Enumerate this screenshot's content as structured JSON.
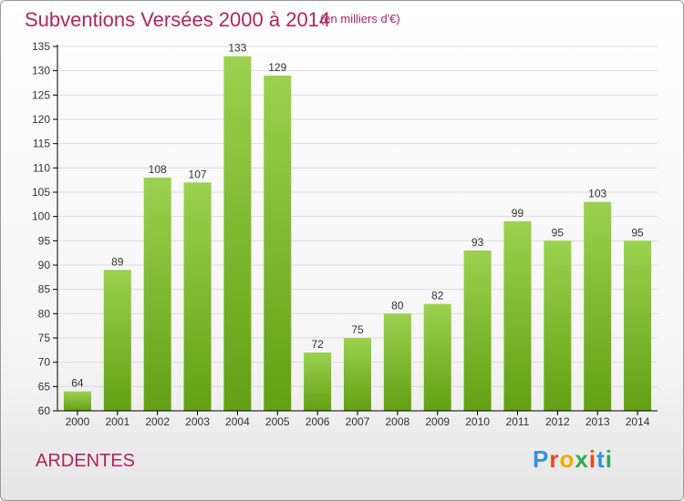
{
  "header": {
    "title": "Subventions Versées 2000 à 2014",
    "subtitle": "(en milliers d'€)"
  },
  "footer": {
    "location": "ARDENTES",
    "logo_text": "Proxiti"
  },
  "colors": {
    "title": "#b0245e",
    "bar_top": "#9bd14f",
    "bar_bottom": "#63a014",
    "axis": "#000000",
    "grid": "#dcdcdc"
  },
  "chart_data": {
    "type": "bar",
    "title": "Subventions Versées 2000 à 2014",
    "subtitle": "(en milliers d'€)",
    "xlabel": "",
    "ylabel": "",
    "categories": [
      "2000",
      "2001",
      "2002",
      "2003",
      "2004",
      "2005",
      "2006",
      "2007",
      "2008",
      "2009",
      "2010",
      "2011",
      "2012",
      "2013",
      "2014"
    ],
    "values": [
      64,
      89,
      108,
      107,
      133,
      129,
      72,
      75,
      80,
      82,
      93,
      99,
      95,
      103,
      95
    ],
    "ylim": [
      60,
      135
    ],
    "yticks": [
      60,
      65,
      70,
      75,
      80,
      85,
      90,
      95,
      100,
      105,
      110,
      115,
      120,
      125,
      130,
      135
    ],
    "grid": true,
    "data_labels": true,
    "legend": "none"
  }
}
